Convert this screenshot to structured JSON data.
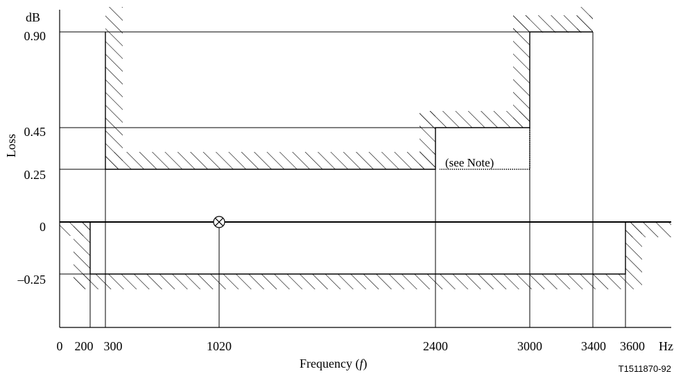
{
  "chart_data": {
    "type": "line",
    "title": "",
    "xlabel": "Frequency (f)",
    "xlabel_main": "Frequency (",
    "xlabel_var": "f",
    "xlabel_close": ")",
    "ylabel": "Loss",
    "yunit": "dB",
    "xunit": "Hz",
    "x_ticks": [
      "0",
      "200",
      "300",
      "1020",
      "2400",
      "3000",
      "3400",
      "3600"
    ],
    "y_ticks": [
      "0.90",
      "0.45",
      "0.25",
      "0",
      "–0.25"
    ],
    "upper_limit": {
      "name": "",
      "points": [
        [
          300,
          0.9
        ],
        [
          300,
          0.25
        ],
        [
          2400,
          0.25
        ],
        [
          2400,
          0.45
        ],
        [
          3000,
          0.45
        ],
        [
          3000,
          0.9
        ],
        [
          3400,
          0.9
        ]
      ]
    },
    "lower_limit": {
      "name": "",
      "points": [
        [
          200,
          0.0
        ],
        [
          200,
          -0.25
        ],
        [
          3600,
          -0.25
        ],
        [
          3600,
          0.0
        ]
      ]
    },
    "reference_point": {
      "x": 1020,
      "y": 0,
      "symbol": "⊗"
    },
    "note_label": "(see Note)",
    "figure_id": "T1511870-92"
  }
}
